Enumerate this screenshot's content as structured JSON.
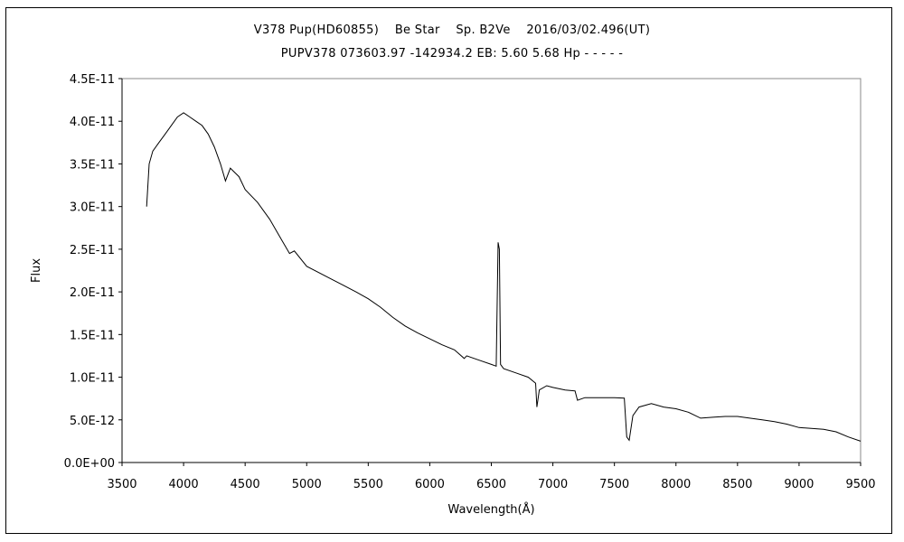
{
  "chart_data": {
    "type": "line",
    "title": "V378 Pup(HD60855)    Be Star    Sp. B2Ve    2016/03/02.496(UT)",
    "subtitle": "PUPV378 073603.97 -142934.2 EB: 5.60 5.68 Hp - - - - -",
    "xlabel": "Wavelength(Å)",
    "ylabel": "Flux",
    "xlim": [
      3500,
      9500
    ],
    "ylim": [
      0,
      4.5e-11
    ],
    "x_ticks": [
      "3500",
      "4000",
      "4500",
      "5000",
      "5500",
      "6000",
      "6500",
      "7000",
      "7500",
      "8000",
      "8500",
      "9000",
      "9500"
    ],
    "y_ticks": [
      "0.0E+00",
      "5.0E-12",
      "1.0E-11",
      "1.5E-11",
      "2.0E-11",
      "2.5E-11",
      "3.0E-11",
      "3.5E-11",
      "4.0E-11",
      "4.5E-11"
    ],
    "grid": false,
    "series": [
      {
        "color": "#000000",
        "points": [
          [
            3700,
            3e-11
          ],
          [
            3720,
            3.5e-11
          ],
          [
            3750,
            3.65e-11
          ],
          [
            3800,
            3.75e-11
          ],
          [
            3850,
            3.85e-11
          ],
          [
            3900,
            3.95e-11
          ],
          [
            3950,
            4.05e-11
          ],
          [
            4000,
            4.1e-11
          ],
          [
            4050,
            4.05e-11
          ],
          [
            4100,
            4e-11
          ],
          [
            4150,
            3.95e-11
          ],
          [
            4200,
            3.85e-11
          ],
          [
            4250,
            3.7e-11
          ],
          [
            4300,
            3.5e-11
          ],
          [
            4340,
            3.3e-11
          ],
          [
            4380,
            3.45e-11
          ],
          [
            4450,
            3.35e-11
          ],
          [
            4500,
            3.2e-11
          ],
          [
            4600,
            3.05e-11
          ],
          [
            4700,
            2.85e-11
          ],
          [
            4800,
            2.6e-11
          ],
          [
            4861,
            2.45e-11
          ],
          [
            4900,
            2.48e-11
          ],
          [
            5000,
            2.3e-11
          ],
          [
            5200,
            2.15e-11
          ],
          [
            5400,
            2e-11
          ],
          [
            5500,
            1.92e-11
          ],
          [
            5600,
            1.82e-11
          ],
          [
            5700,
            1.7e-11
          ],
          [
            5800,
            1.6e-11
          ],
          [
            5900,
            1.52e-11
          ],
          [
            6000,
            1.45e-11
          ],
          [
            6100,
            1.38e-11
          ],
          [
            6200,
            1.32e-11
          ],
          [
            6280,
            1.22e-11
          ],
          [
            6300,
            1.25e-11
          ],
          [
            6400,
            1.2e-11
          ],
          [
            6500,
            1.15e-11
          ],
          [
            6540,
            1.13e-11
          ],
          [
            6555,
            2.58e-11
          ],
          [
            6565,
            2.5e-11
          ],
          [
            6575,
            1.15e-11
          ],
          [
            6600,
            1.1e-11
          ],
          [
            6700,
            1.05e-11
          ],
          [
            6800,
            1e-11
          ],
          [
            6860,
            9.3e-12
          ],
          [
            6870,
            6.5e-12
          ],
          [
            6890,
            8.5e-12
          ],
          [
            6950,
            9e-12
          ],
          [
            7000,
            8.8e-12
          ],
          [
            7100,
            8.5e-12
          ],
          [
            7180,
            8.4e-12
          ],
          [
            7200,
            7.3e-12
          ],
          [
            7260,
            7.6e-12
          ],
          [
            7300,
            7.6e-12
          ],
          [
            7400,
            7.6e-12
          ],
          [
            7500,
            7.6e-12
          ],
          [
            7580,
            7.55e-12
          ],
          [
            7600,
            3e-12
          ],
          [
            7620,
            2.6e-12
          ],
          [
            7650,
            5.5e-12
          ],
          [
            7700,
            6.5e-12
          ],
          [
            7800,
            6.9e-12
          ],
          [
            7900,
            6.5e-12
          ],
          [
            8000,
            6.3e-12
          ],
          [
            8100,
            5.9e-12
          ],
          [
            8200,
            5.2e-12
          ],
          [
            8300,
            5.3e-12
          ],
          [
            8400,
            5.4e-12
          ],
          [
            8500,
            5.4e-12
          ],
          [
            8600,
            5.2e-12
          ],
          [
            8700,
            5e-12
          ],
          [
            8800,
            4.8e-12
          ],
          [
            8900,
            4.5e-12
          ],
          [
            9000,
            4.1e-12
          ],
          [
            9100,
            4e-12
          ],
          [
            9200,
            3.9e-12
          ],
          [
            9300,
            3.6e-12
          ],
          [
            9400,
            3e-12
          ],
          [
            9500,
            2.5e-12
          ]
        ]
      }
    ]
  }
}
